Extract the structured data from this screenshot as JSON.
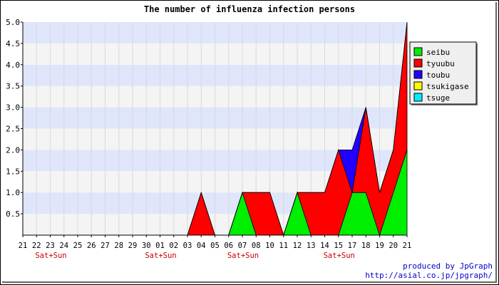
{
  "chart_data": {
    "type": "area",
    "stacked": true,
    "title": "The number of influenza infection persons",
    "ylim": [
      0,
      5.0
    ],
    "yticks": [
      "0.5",
      "1.0",
      "1.5",
      "2.0",
      "2.5",
      "3.0",
      "3.5",
      "4.0",
      "4.5",
      "5.0"
    ],
    "categories": [
      "21",
      "22",
      "23",
      "24",
      "25",
      "26",
      "27",
      "28",
      "29",
      "30",
      "01",
      "02",
      "03",
      "04",
      "05",
      "06",
      "07",
      "08",
      "10",
      "11",
      "12",
      "13",
      "14",
      "15",
      "17",
      "18",
      "19",
      "20",
      "21"
    ],
    "weekend_label": "Sat+Sun",
    "weekend_marks": [
      "23",
      "01",
      "07",
      "15"
    ],
    "grid": true,
    "band_colors": [
      "#f4f4f4",
      "#dfe6fb"
    ],
    "legend_position": "right",
    "series": [
      {
        "name": "seibu",
        "color": "#00ee00",
        "values": [
          0,
          0,
          0,
          0,
          0,
          0,
          0,
          0,
          0,
          0,
          0,
          0,
          0,
          0,
          0,
          0,
          1,
          0,
          0,
          0,
          1,
          0,
          0,
          0,
          1,
          1,
          0,
          1,
          2
        ]
      },
      {
        "name": "tyuubu",
        "color": "#ff0000",
        "values": [
          0,
          0,
          0,
          0,
          0,
          0,
          0,
          0,
          0,
          0,
          0,
          0,
          0,
          1,
          0,
          0,
          0,
          1,
          1,
          0,
          0,
          1,
          1,
          2,
          0,
          2,
          1,
          1,
          3
        ]
      },
      {
        "name": "toubu",
        "color": "#2200ff",
        "values": [
          0,
          0,
          0,
          0,
          0,
          0,
          0,
          0,
          0,
          0,
          0,
          0,
          0,
          0,
          0,
          0,
          0,
          0,
          0,
          0,
          0,
          0,
          0,
          0,
          1,
          0,
          0,
          0,
          0
        ]
      },
      {
        "name": "tsukigase",
        "color": "#ffff00",
        "values": [
          0,
          0,
          0,
          0,
          0,
          0,
          0,
          0,
          0,
          0,
          0,
          0,
          0,
          0,
          0,
          0,
          0,
          0,
          0,
          0,
          0,
          0,
          0,
          0,
          0,
          0,
          0,
          0,
          0
        ]
      },
      {
        "name": "tsuge",
        "color": "#00eeff",
        "values": [
          0,
          0,
          0,
          0,
          0,
          0,
          0,
          0,
          0,
          0,
          0,
          0,
          0,
          0,
          0,
          0,
          0,
          0,
          0,
          0,
          0,
          0,
          0,
          0,
          0,
          0,
          0,
          0,
          0
        ]
      }
    ]
  },
  "credit": {
    "line1": "produced by JpGraph",
    "line2": "http://asial.co.jp/jpgraph/"
  }
}
